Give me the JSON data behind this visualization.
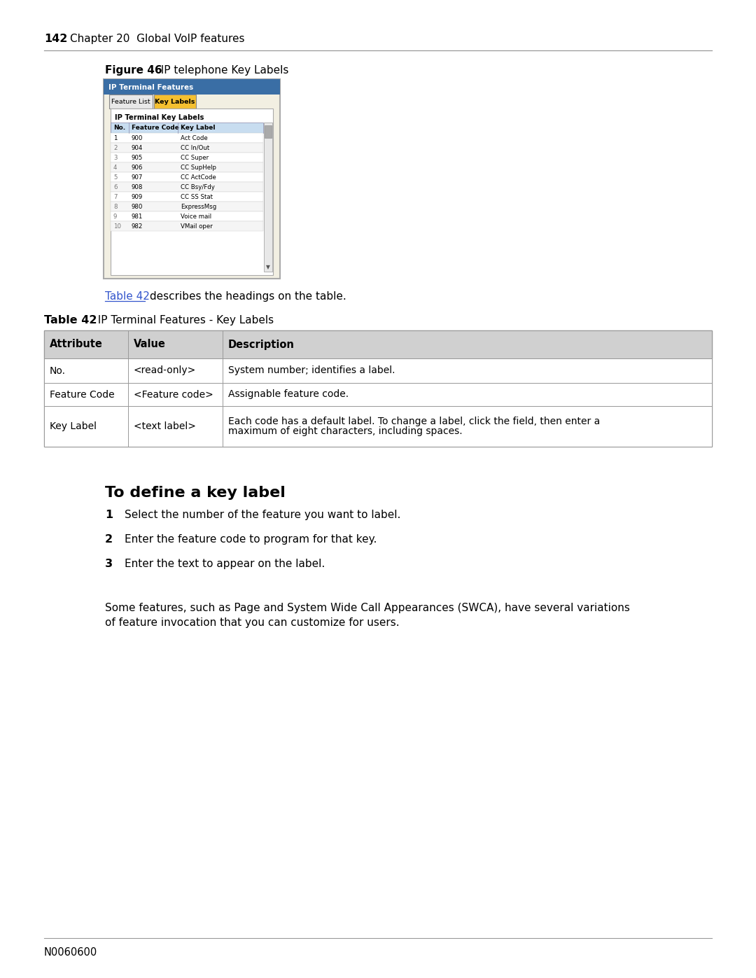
{
  "page_number": "142",
  "chapter_title": "Chapter 20  Global VoIP features",
  "figure_label": "Figure 46",
  "figure_title": "  IP telephone Key Labels",
  "screenshot_title": "IP Terminal Features",
  "tab1": "Feature List",
  "tab2": "Key Labels",
  "screenshot_table_title": "IP Terminal Key Labels",
  "screenshot_headers": [
    "No.",
    "Feature Code",
    "Key Label"
  ],
  "screenshot_rows": [
    [
      "1",
      "900",
      "Act Code"
    ],
    [
      "2",
      "904",
      "CC In/Out"
    ],
    [
      "3",
      "905",
      "CC Super"
    ],
    [
      "4",
      "906",
      "CC SupHelp"
    ],
    [
      "5",
      "907",
      "CC ActCode"
    ],
    [
      "6",
      "908",
      "CC Bsy/Fdy"
    ],
    [
      "7",
      "909",
      "CC SS Stat"
    ],
    [
      "8",
      "980",
      "ExpressMsg"
    ],
    [
      "9",
      "981",
      "Voice mail"
    ],
    [
      "10",
      "982",
      "VMail oper"
    ]
  ],
  "table_ref_before": "Table 42",
  "table_ref_after": " describes the headings on the table.",
  "table42_label": "Table 42",
  "table42_title": "  IP Terminal Features - Key Labels",
  "table42_headers": [
    "Attribute",
    "Value",
    "Description"
  ],
  "table42_rows": [
    [
      "No.",
      "<read-only>",
      "System number; identifies a label."
    ],
    [
      "Feature Code",
      "<Feature code>",
      "Assignable feature code."
    ],
    [
      "Key Label",
      "<text label>",
      "Each code has a default label. To change a label, click the field, then enter a\nmaximum of eight characters, including spaces."
    ]
  ],
  "section_title": "To define a key label",
  "steps": [
    [
      "1",
      "Select the number of the feature you want to label."
    ],
    [
      "2",
      "Enter the feature code to program for that key."
    ],
    [
      "3",
      "Enter the text to appear on the label."
    ]
  ],
  "paragraph_lines": [
    "Some features, such as Page and System Wide Call Appearances (SWCA), have several variations",
    "of feature invocation that you can customize for users."
  ],
  "footer_text": "N0060600",
  "bg_color": "#ffffff",
  "line_color": "#999999",
  "table_border": "#999999",
  "table_hdr_bg": "#d0d0d0",
  "ss_bg": "#f2efe2",
  "ss_border": "#888888",
  "link_color": "#3355cc",
  "tab1_bg": "#e8e8e8",
  "tab2_bg": "#f5c842",
  "inner_bg": "#f2efe2"
}
